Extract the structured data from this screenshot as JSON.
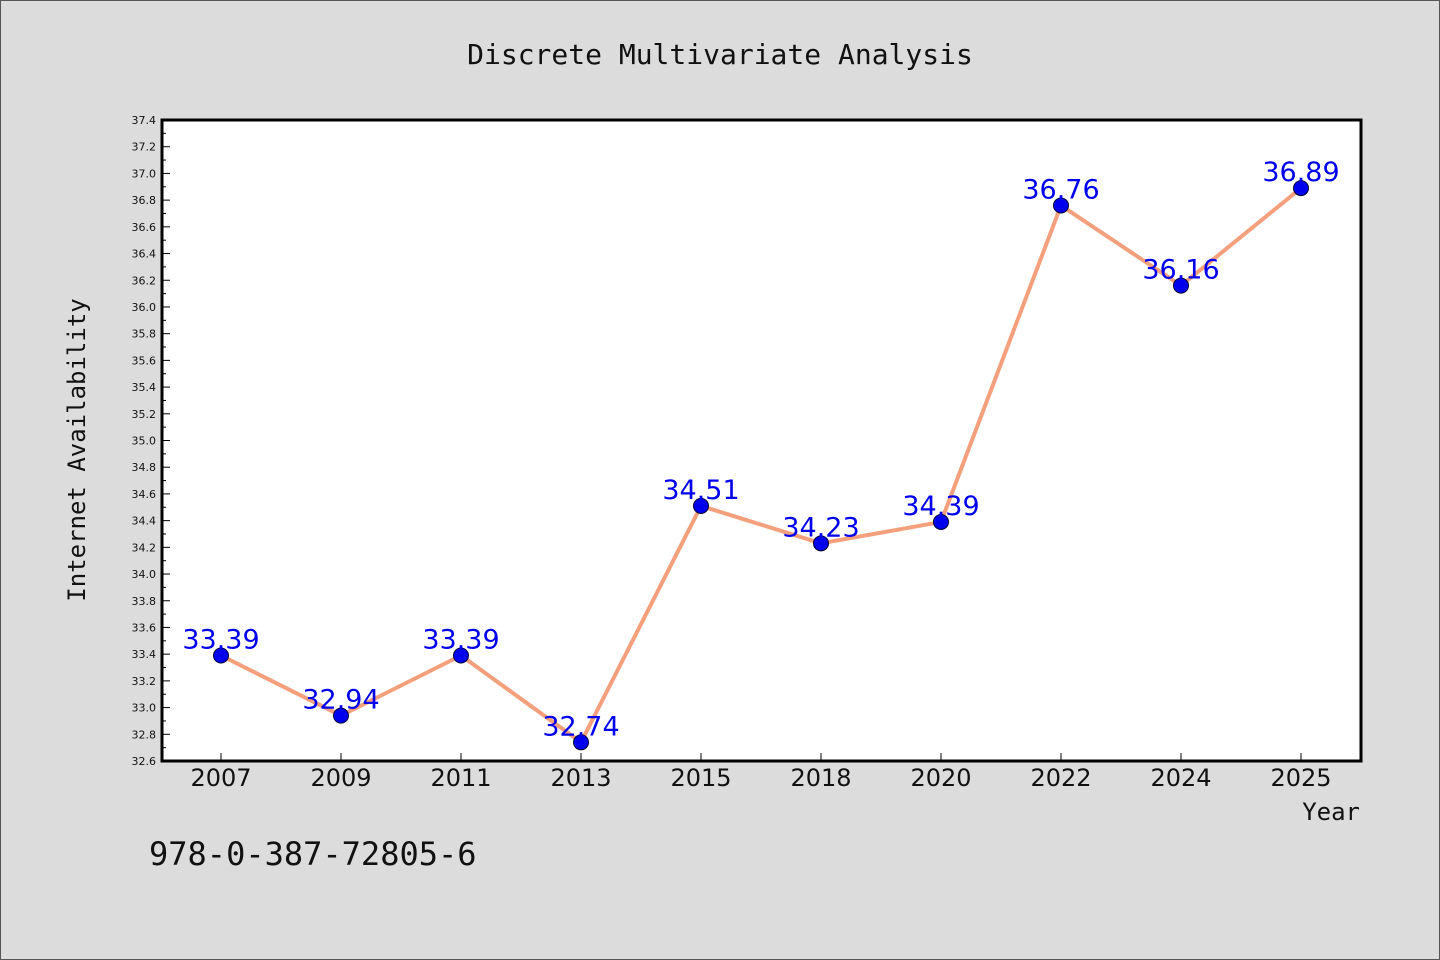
{
  "chart_data": {
    "type": "line",
    "title": "Discrete Multivariate Analysis",
    "xlabel": "Year",
    "ylabel": "Internet Availability",
    "categories": [
      "2007",
      "2009",
      "2011",
      "2013",
      "2015",
      "2018",
      "2020",
      "2022",
      "2024",
      "2025"
    ],
    "series": [
      {
        "values": [
          33.39,
          32.94,
          33.39,
          32.74,
          34.51,
          34.23,
          34.39,
          36.76,
          36.16,
          36.89
        ],
        "labels": [
          "33.39",
          "32.94",
          "33.39",
          "32.74",
          "34.51",
          "34.23",
          "34.39",
          "36.76",
          "36.16",
          "36.89"
        ]
      }
    ],
    "ylim": [
      32.6,
      37.4
    ],
    "y_major_step": 0.2,
    "y_ticks": [
      "32.6",
      "32.8",
      "33.0",
      "33.2",
      "33.4",
      "33.6",
      "33.8",
      "34.0",
      "34.2",
      "34.4",
      "34.6",
      "34.8",
      "35.0",
      "35.2",
      "35.4",
      "35.6",
      "35.8",
      "36.0",
      "36.2",
      "36.4",
      "36.6",
      "36.8",
      "37.0",
      "37.2",
      "37.4"
    ],
    "grid": false,
    "legend": "none",
    "colors": {
      "line": "#f4a07c",
      "marker": "#0000ee",
      "marker_edge": "#000033",
      "data_label": "#0000ee",
      "plot_background": "#ffffff",
      "figure_background": "#dcdcdc"
    }
  },
  "footer": {
    "isbn": "978-0-387-72805-6"
  }
}
